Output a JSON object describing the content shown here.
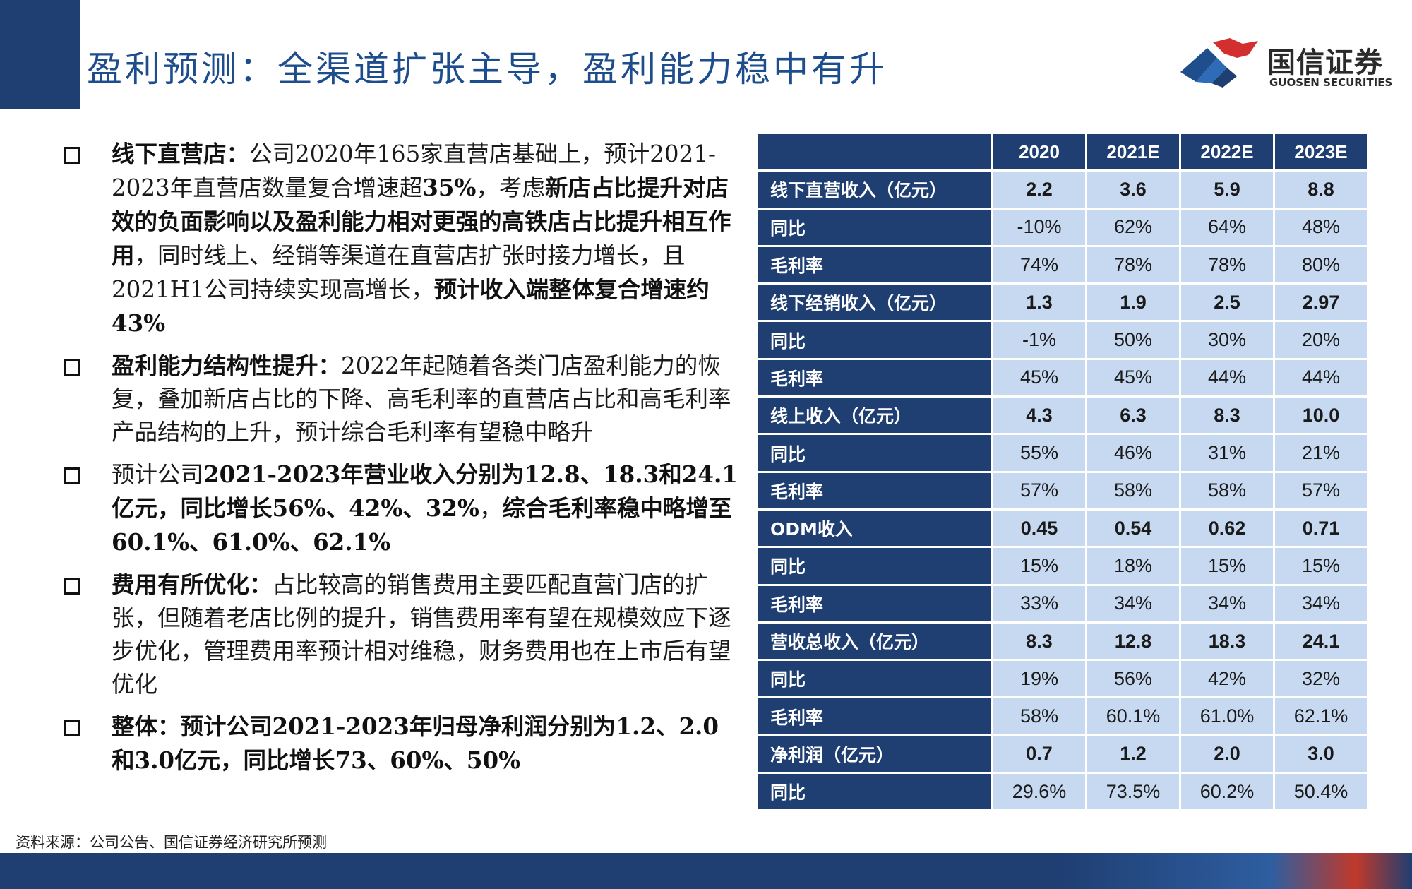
{
  "header": {
    "title": "盈利预测：全渠道扩张主导，盈利能力稳中有升",
    "logo_cn": "国信证券",
    "logo_en": "GUOSEN SECURITIES"
  },
  "bullets": [
    {
      "segments": [
        {
          "text": "线下直营店：",
          "bold": true
        },
        {
          "text": "公司2020年165家直营店基础上，预计2021-2023年直营店数量复合增速超",
          "bold": false
        },
        {
          "text": "35%",
          "bold": true
        },
        {
          "text": "，考虑",
          "bold": false
        },
        {
          "text": "新店占比提升对店效的负面影响以及盈利能力相对更强的高铁店占比提升相互作用",
          "bold": true
        },
        {
          "text": "，同时线上、经销等渠道在直营店扩张时接力增长，且2021H1公司持续实现高增长，",
          "bold": false
        },
        {
          "text": "预计收入端整体复合增速约43%",
          "bold": true
        }
      ]
    },
    {
      "segments": [
        {
          "text": "盈利能力结构性提升：",
          "bold": true
        },
        {
          "text": "2022年起随着各类门店盈利能力的恢复，叠加新店占比的下降、高毛利率的直营店占比和高毛利率产品结构的上升，预计综合毛利率有望稳中略升",
          "bold": false
        }
      ]
    },
    {
      "segments": [
        {
          "text": "预计公司",
          "bold": false
        },
        {
          "text": "2021-2023年营业收入分别为12.8、18.3和24.1亿元，同比增长56%、42%、32%",
          "bold": true
        },
        {
          "text": "，",
          "bold": false
        },
        {
          "text": "综合毛利率稳中略增至60.1%、61.0%、62.1%",
          "bold": true
        }
      ]
    },
    {
      "segments": [
        {
          "text": "费用有所优化：",
          "bold": true
        },
        {
          "text": "占比较高的销售费用主要匹配直营门店的扩张，但随着老店比例的提升，销售费用率有望在规模效应下逐步优化，管理费用率预计相对维稳，财务费用也在上市后有望优化",
          "bold": false
        }
      ]
    },
    {
      "segments": [
        {
          "text": "整体：预计公司2021-2023年归母净利润分别为1.2、2.0和3.0亿元，同比增长73、60%、50%",
          "bold": true
        }
      ]
    }
  ],
  "table": {
    "columns": [
      "",
      "2020",
      "2021E",
      "2022E",
      "2023E"
    ],
    "rows": [
      {
        "label": "线下直营收入（亿元）",
        "values": [
          "2.2",
          "3.6",
          "5.9",
          "8.8"
        ],
        "bold": true
      },
      {
        "label": "同比",
        "values": [
          "-10%",
          "62%",
          "64%",
          "48%"
        ],
        "bold": false
      },
      {
        "label": "毛利率",
        "values": [
          "74%",
          "78%",
          "78%",
          "80%"
        ],
        "bold": false
      },
      {
        "label": "线下经销收入（亿元）",
        "values": [
          "1.3",
          "1.9",
          "2.5",
          "2.97"
        ],
        "bold": true
      },
      {
        "label": "同比",
        "values": [
          "-1%",
          "50%",
          "30%",
          "20%"
        ],
        "bold": false
      },
      {
        "label": "毛利率",
        "values": [
          "45%",
          "45%",
          "44%",
          "44%"
        ],
        "bold": false
      },
      {
        "label": "线上收入（亿元）",
        "values": [
          "4.3",
          "6.3",
          "8.3",
          "10.0"
        ],
        "bold": true
      },
      {
        "label": "同比",
        "values": [
          "55%",
          "46%",
          "31%",
          "21%"
        ],
        "bold": false
      },
      {
        "label": "毛利率",
        "values": [
          "57%",
          "58%",
          "58%",
          "57%"
        ],
        "bold": false
      },
      {
        "label": "ODM收入",
        "values": [
          "0.45",
          "0.54",
          "0.62",
          "0.71"
        ],
        "bold": true
      },
      {
        "label": "同比",
        "values": [
          "15%",
          "18%",
          "15%",
          "15%"
        ],
        "bold": false
      },
      {
        "label": "毛利率",
        "values": [
          "33%",
          "34%",
          "34%",
          "34%"
        ],
        "bold": false
      },
      {
        "label": "营收总收入（亿元）",
        "values": [
          "8.3",
          "12.8",
          "18.3",
          "24.1"
        ],
        "bold": true
      },
      {
        "label": "同比",
        "values": [
          "19%",
          "56%",
          "42%",
          "32%"
        ],
        "bold": false
      },
      {
        "label": "毛利率",
        "values": [
          "58%",
          "60.1%",
          "61.0%",
          "62.1%"
        ],
        "bold": false
      },
      {
        "label": "净利润（亿元）",
        "values": [
          "0.7",
          "1.2",
          "2.0",
          "3.0"
        ],
        "bold": true
      },
      {
        "label": "同比",
        "values": [
          "29.6%",
          "73.5%",
          "60.2%",
          "50.4%"
        ],
        "bold": false
      }
    ]
  },
  "source_note": "资料来源：公司公告、国信证券经济研究所预测",
  "colors": {
    "navy": "#1f3e72",
    "title_blue": "#1d4d8c",
    "cell_light_blue": "#c6d9f0",
    "logo_red": "#d32f2f"
  }
}
